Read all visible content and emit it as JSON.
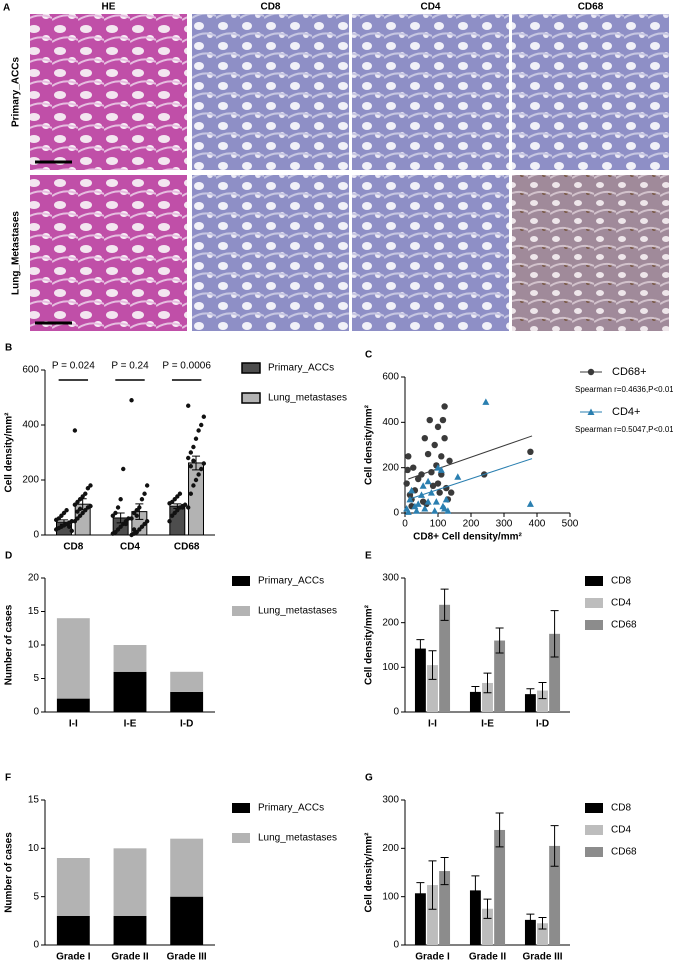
{
  "panel_a": {
    "label": "A",
    "columns": [
      "HE",
      "CD8",
      "CD4",
      "CD68"
    ],
    "rows": [
      "Primary_ACCs",
      "Lung_Metastases"
    ]
  },
  "chart_data": [
    {
      "type": "bar",
      "label": "B",
      "ylabel": "Cell density/mm²",
      "categories": [
        "CD8",
        "CD4",
        "CD68"
      ],
      "ylim": [
        0,
        600
      ],
      "yticks": [
        0,
        200,
        400,
        600
      ],
      "p_values": [
        "P = 0.024",
        "P = 0.24",
        "P = 0.0006"
      ],
      "series": [
        {
          "name": "Primary_ACCs",
          "color": "#4d4d4d",
          "values": [
            47,
            62,
            105
          ],
          "errors": [
            8,
            18,
            8
          ],
          "points": [
            [
              20,
              25,
              30,
              35,
              40,
              45,
              50,
              55,
              60,
              70,
              80,
              90,
              30,
              15
            ],
            [
              5,
              10,
              20,
              30,
              40,
              50,
              60,
              70,
              80,
              100,
              130,
              240,
              40
            ],
            [
              50,
              70,
              80,
              90,
              100,
              105,
              110,
              115,
              120,
              130,
              140,
              150,
              100
            ]
          ]
        },
        {
          "name": "Lung_metastases",
          "color": "#b3b3b3",
          "values": [
            112,
            85,
            262
          ],
          "errors": [
            20,
            28,
            25
          ],
          "points": [
            [
              50,
              60,
              70,
              80,
              90,
              100,
              105,
              110,
              120,
              130,
              140,
              150,
              170,
              180,
              380,
              85,
              95
            ],
            [
              0,
              5,
              10,
              20,
              30,
              40,
              50,
              60,
              80,
              90,
              100,
              130,
              150,
              180,
              490,
              20,
              70
            ],
            [
              100,
              150,
              180,
              200,
              220,
              240,
              260,
              280,
              300,
              320,
              350,
              380,
              400,
              430,
              470,
              250,
              270
            ]
          ]
        }
      ]
    },
    {
      "type": "scatter",
      "label": "C",
      "xlabel": "CD8+ Cell density/mm²",
      "ylabel": "Cell density/mm²",
      "xlim": [
        0,
        500
      ],
      "xticks": [
        0,
        100,
        200,
        300,
        400,
        500
      ],
      "ylim": [
        0,
        600
      ],
      "yticks": [
        0,
        200,
        400,
        600
      ],
      "series": [
        {
          "name": "CD68+",
          "color": "#3a3a3a",
          "marker": "circle",
          "annotation": "Spearman r=0.4636,P<0.01",
          "x": [
            5,
            8,
            10,
            15,
            20,
            20,
            30,
            40,
            50,
            55,
            60,
            70,
            75,
            80,
            85,
            90,
            95,
            100,
            100,
            105,
            110,
            115,
            120,
            120,
            125,
            130,
            135,
            140,
            240,
            380,
            25,
            65,
            110
          ],
          "values": [
            130,
            190,
            250,
            80,
            60,
            30,
            100,
            150,
            170,
            50,
            330,
            260,
            410,
            180,
            120,
            300,
            210,
            380,
            130,
            90,
            170,
            410,
            470,
            330,
            110,
            60,
            230,
            90,
            170,
            270,
            200,
            40,
            250
          ],
          "trend": {
            "x": [
              10,
              385
            ],
            "y": [
              150,
              340
            ]
          }
        },
        {
          "name": "CD4+",
          "color": "#2a7fb0",
          "marker": "triangle",
          "annotation": "Spearman r=0.5047,P<0.01",
          "x": [
            5,
            10,
            15,
            20,
            30,
            40,
            50,
            55,
            60,
            70,
            80,
            90,
            95,
            100,
            110,
            115,
            120,
            125,
            130,
            160,
            245,
            380,
            35,
            70
          ],
          "values": [
            20,
            5,
            60,
            100,
            30,
            40,
            80,
            120,
            20,
            140,
            90,
            10,
            50,
            200,
            190,
            30,
            20,
            60,
            10,
            160,
            490,
            40,
            10,
            50
          ],
          "trend": {
            "x": [
              10,
              385
            ],
            "y": [
              60,
              240
            ]
          }
        }
      ]
    },
    {
      "type": "stacked_bar",
      "label": "D",
      "ylabel": "Number of cases",
      "categories": [
        "I-I",
        "I-E",
        "I-D"
      ],
      "ylim": [
        0,
        20
      ],
      "yticks": [
        0,
        5,
        10,
        15,
        20
      ],
      "series": [
        {
          "name": "Primary_ACCs",
          "color": "#000000",
          "values": [
            2,
            6,
            3
          ]
        },
        {
          "name": "Lung_metastases",
          "color": "#b3b3b3",
          "values": [
            12,
            4,
            3
          ]
        }
      ]
    },
    {
      "type": "bar",
      "label": "E",
      "ylabel": "Cell density/mm²",
      "categories": [
        "I-I",
        "I-E",
        "I-D"
      ],
      "ylim": [
        0,
        300
      ],
      "yticks": [
        0,
        100,
        200,
        300
      ],
      "series": [
        {
          "name": "CD8",
          "color": "#000000",
          "values": [
            142,
            45,
            40
          ],
          "errors": [
            20,
            12,
            12
          ]
        },
        {
          "name": "CD4",
          "color": "#bdbdbd",
          "values": [
            105,
            65,
            48
          ],
          "errors": [
            32,
            22,
            18
          ]
        },
        {
          "name": "CD68",
          "color": "#8c8c8c",
          "values": [
            240,
            160,
            175
          ],
          "errors": [
            35,
            28,
            52
          ]
        }
      ]
    },
    {
      "type": "stacked_bar",
      "label": "F",
      "ylabel": "Number of cases",
      "categories": [
        "Grade I",
        "Grade II",
        "Grade III"
      ],
      "ylim": [
        0,
        15
      ],
      "yticks": [
        0,
        5,
        10,
        15
      ],
      "series": [
        {
          "name": "Primary_ACCs",
          "color": "#000000",
          "values": [
            3,
            3,
            5
          ]
        },
        {
          "name": "Lung_metastases",
          "color": "#b3b3b3",
          "values": [
            6,
            7,
            6
          ]
        }
      ]
    },
    {
      "type": "bar",
      "label": "G",
      "ylabel": "Cell density/mm²",
      "categories": [
        "Grade I",
        "Grade II",
        "Grade III"
      ],
      "ylim": [
        0,
        300
      ],
      "yticks": [
        0,
        100,
        200,
        300
      ],
      "series": [
        {
          "name": "CD8",
          "color": "#000000",
          "values": [
            107,
            113,
            52
          ],
          "errors": [
            22,
            30,
            12
          ]
        },
        {
          "name": "CD4",
          "color": "#bdbdbd",
          "values": [
            124,
            75,
            45
          ],
          "errors": [
            50,
            20,
            12
          ]
        },
        {
          "name": "CD68",
          "color": "#8c8c8c",
          "values": [
            153,
            238,
            205
          ],
          "errors": [
            28,
            35,
            42
          ]
        }
      ]
    }
  ]
}
